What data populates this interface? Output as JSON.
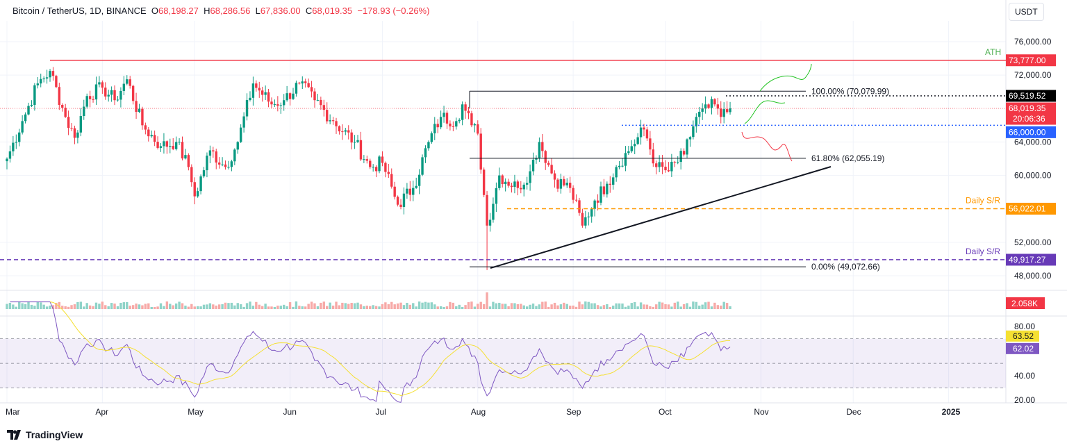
{
  "header": {
    "symbol": "Bitcoin / TetherUS, 1D, BINANCE",
    "o_label": "O",
    "open": "68,198.27",
    "h_label": "H",
    "high": "68,286.56",
    "l_label": "L",
    "low": "67,836.00",
    "c_label": "C",
    "close": "68,019.35",
    "change": "−178.93 (−0.26%)"
  },
  "currency_button": "USDT",
  "brand": "TradingView",
  "colors": {
    "up": "#089981",
    "down": "#f23645",
    "ath": "#f23645",
    "support_blue": "#2962ff",
    "orange": "#ff9800",
    "purple": "#673ab7",
    "rsi": "#7e57c2",
    "rsi_ma": "#f5e032"
  },
  "chart_data": {
    "type": "candlestick",
    "title": "Bitcoin / TetherUS, 1D, BINANCE",
    "price_axis": {
      "ticks": [
        "76,000.00",
        "72,000.00",
        "64,000.00",
        "60,000.00",
        "52,000.00",
        "48,000.00"
      ],
      "tick_values": [
        76000,
        72000,
        64000,
        60000,
        52000,
        48000
      ],
      "range": [
        46500,
        77500
      ]
    },
    "x_ticks": [
      "Mar",
      "Apr",
      "May",
      "Jun",
      "Jul",
      "Aug",
      "Sep",
      "Oct",
      "Nov",
      "Dec",
      "2025"
    ],
    "x_tick_days": [
      0,
      31,
      61,
      92,
      122,
      153,
      184,
      214,
      245,
      275,
      306
    ],
    "close_anchors": [
      [
        0,
        62000
      ],
      [
        5,
        66500
      ],
      [
        10,
        71000
      ],
      [
        14,
        72500
      ],
      [
        19,
        67000
      ],
      [
        22,
        64500
      ],
      [
        26,
        69500
      ],
      [
        31,
        70500
      ],
      [
        35,
        69000
      ],
      [
        39,
        71500
      ],
      [
        44,
        66000
      ],
      [
        50,
        63500
      ],
      [
        55,
        64000
      ],
      [
        59,
        61000
      ],
      [
        61,
        57500
      ],
      [
        66,
        63000
      ],
      [
        71,
        61000
      ],
      [
        75,
        64000
      ],
      [
        80,
        71000
      ],
      [
        86,
        68500
      ],
      [
        90,
        69000
      ],
      [
        95,
        71000
      ],
      [
        100,
        69000
      ],
      [
        106,
        66500
      ],
      [
        113,
        64000
      ],
      [
        118,
        61000
      ],
      [
        122,
        61500
      ],
      [
        127,
        56500
      ],
      [
        132,
        58500
      ],
      [
        137,
        64000
      ],
      [
        141,
        67000
      ],
      [
        146,
        66500
      ],
      [
        148,
        68500
      ],
      [
        151,
        66000
      ],
      [
        153,
        65000
      ],
      [
        156,
        54000
      ],
      [
        160,
        60000
      ],
      [
        166,
        58500
      ],
      [
        170,
        60500
      ],
      [
        173,
        64000
      ],
      [
        178,
        59500
      ],
      [
        183,
        58500
      ],
      [
        187,
        54000
      ],
      [
        191,
        57000
      ],
      [
        195,
        59000
      ],
      [
        198,
        61000
      ],
      [
        203,
        63500
      ],
      [
        207,
        65500
      ],
      [
        211,
        61000
      ],
      [
        215,
        60500
      ],
      [
        220,
        62500
      ],
      [
        224,
        67000
      ],
      [
        230,
        68500
      ],
      [
        232,
        67000
      ],
      [
        235,
        68019
      ]
    ],
    "levels": [
      {
        "label": "ATH",
        "value": 73777,
        "tag": "73,777.00"
      },
      {
        "label": "",
        "value": 69519.52,
        "tag": "69,519.52"
      },
      {
        "label": "",
        "value": 68019.35,
        "tag": "68,019.35",
        "countdown": "20:06:36"
      },
      {
        "label": "",
        "value": 66000,
        "tag": "66,000.00"
      },
      {
        "label": "Daily S/R",
        "value": 56022.01,
        "tag": "56,022.01"
      },
      {
        "label": "Daily S/R",
        "value": 49917.27,
        "tag": "49,917.27"
      }
    ],
    "fib": [
      {
        "label": "100.00% (70,079.99)",
        "value": 70079.99
      },
      {
        "label": "61.80% (62,055.19)",
        "value": 62055.19
      },
      {
        "label": "0.00% (49,072.66)",
        "value": 49072.66
      }
    ],
    "volume_tag": "2.058K",
    "rsi": {
      "ticks": [
        "80.00",
        "40.00",
        "20.00"
      ],
      "tick_values": [
        80,
        40,
        20
      ],
      "upper": 70,
      "mid": 50,
      "lower": 30,
      "value_tag": "62.02",
      "ma_tag": "63.52"
    }
  }
}
